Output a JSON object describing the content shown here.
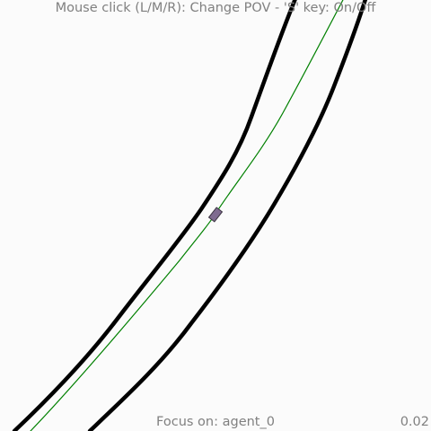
{
  "hud": {
    "hint_text": "Mouse click (L/M/R): Change POV - 'S' key: On/Off",
    "focus_text": "Focus on: agent_0",
    "time_text": "0.02"
  },
  "colors": {
    "background": "#fbfbfb",
    "road_edge": "#000000",
    "lane_centerline": "#008000",
    "agent_fill": "#7f6b90",
    "agent_outline": "#3a3340",
    "hud_text": "#808080"
  },
  "scene": {
    "agents": [
      {
        "id": "agent_0",
        "in_focus": true
      }
    ]
  }
}
